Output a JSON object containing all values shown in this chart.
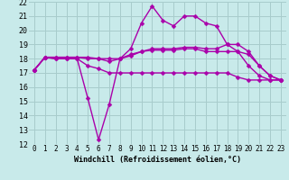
{
  "xlabel": "Windchill (Refroidissement éolien,°C)",
  "x": [
    0,
    1,
    2,
    3,
    4,
    5,
    6,
    7,
    8,
    9,
    10,
    11,
    12,
    13,
    14,
    15,
    16,
    17,
    18,
    19,
    20,
    21,
    22,
    23
  ],
  "line1": [
    17.2,
    18.1,
    18.0,
    18.0,
    18.0,
    15.2,
    12.3,
    14.8,
    18.0,
    18.7,
    20.5,
    21.7,
    20.7,
    20.3,
    21.0,
    21.0,
    20.5,
    20.3,
    19.0,
    18.5,
    17.5,
    16.8,
    16.5,
    16.5
  ],
  "line2": [
    17.2,
    18.1,
    18.1,
    18.1,
    18.1,
    18.1,
    18.0,
    18.0,
    18.0,
    18.3,
    18.5,
    18.7,
    18.7,
    18.7,
    18.8,
    18.8,
    18.7,
    18.7,
    19.0,
    19.0,
    18.5,
    17.5,
    16.8,
    16.5
  ],
  "line3": [
    17.2,
    18.1,
    18.1,
    18.1,
    18.1,
    18.0,
    18.0,
    17.8,
    18.0,
    18.2,
    18.5,
    18.6,
    18.6,
    18.6,
    18.7,
    18.7,
    18.5,
    18.5,
    18.5,
    18.5,
    18.3,
    17.5,
    16.8,
    16.5
  ],
  "line4": [
    17.2,
    18.1,
    18.0,
    18.0,
    18.0,
    17.5,
    17.3,
    17.0,
    17.0,
    17.0,
    17.0,
    17.0,
    17.0,
    17.0,
    17.0,
    17.0,
    17.0,
    17.0,
    17.0,
    16.7,
    16.5,
    16.5,
    16.5,
    16.5
  ],
  "line_color": "#aa00aa",
  "bg_color": "#c8eaea",
  "grid_color": "#a8cccc",
  "ylim": [
    12,
    22
  ],
  "xlim_min": -0.5,
  "xlim_max": 23.5,
  "yticks": [
    12,
    13,
    14,
    15,
    16,
    17,
    18,
    19,
    20,
    21,
    22
  ],
  "xticks": [
    0,
    1,
    2,
    3,
    4,
    5,
    6,
    7,
    8,
    9,
    10,
    11,
    12,
    13,
    14,
    15,
    16,
    17,
    18,
    19,
    20,
    21,
    22,
    23
  ],
  "xlabel_fontsize": 6.0,
  "tick_fontsize": 5.5,
  "lw": 1.0,
  "ms": 2.5
}
